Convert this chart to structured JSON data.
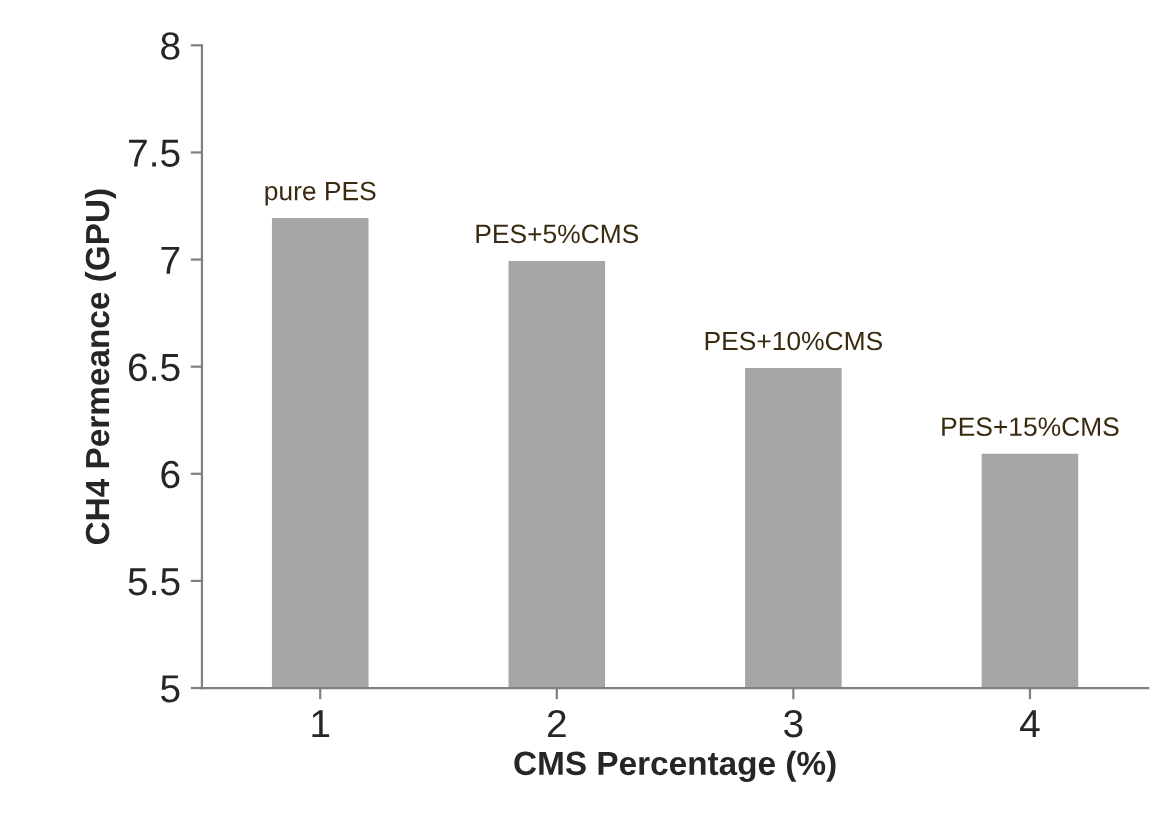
{
  "chart_data": {
    "type": "bar",
    "xlabel": "CMS Percentage (%)",
    "ylabel": "CH4 Permeance (GPU)",
    "categories": [
      "1",
      "2",
      "3",
      "4"
    ],
    "values": [
      7.2,
      7.0,
      6.5,
      6.1
    ],
    "color": "#a6a6a6",
    "ylim": [
      5,
      8
    ],
    "yticks": [
      5,
      5.5,
      6,
      6.5,
      7,
      7.5,
      8
    ],
    "grid": false,
    "annotations": [
      {
        "text": "pure PES",
        "x": "1",
        "y": 7.2
      },
      {
        "text": "PES+5%CMS",
        "x": "2",
        "y": 7.0
      },
      {
        "text": "PES+10%CMS",
        "x": "3",
        "y": 6.5
      },
      {
        "text": "PES+15%CMS",
        "x": "4",
        "y": 6.1
      }
    ]
  }
}
